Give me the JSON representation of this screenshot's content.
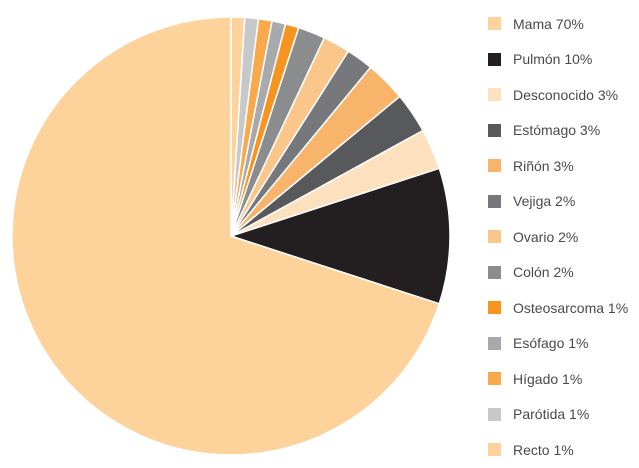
{
  "chart_data": {
    "type": "pie",
    "title": "",
    "slices": [
      {
        "label": "Mama",
        "value": 70,
        "color": "#FDD39B",
        "legend": "Mama 70%"
      },
      {
        "label": "Pulmón",
        "value": 10,
        "color": "#231F20",
        "legend": "Pulmón 10%"
      },
      {
        "label": "Desconocido",
        "value": 3,
        "color": "#FDE0BE",
        "legend": "Desconocido 3%"
      },
      {
        "label": "Estómago",
        "value": 3,
        "color": "#58595B",
        "legend": "Estómago 3%"
      },
      {
        "label": "Riñón",
        "value": 3,
        "color": "#F9B46B",
        "legend": "Riñón 3%"
      },
      {
        "label": "Vejiga",
        "value": 2,
        "color": "#77787B",
        "legend": "Vejiga 2%"
      },
      {
        "label": "Ovario",
        "value": 2,
        "color": "#FBC68A",
        "legend": "Ovario 2%"
      },
      {
        "label": "Colón",
        "value": 2,
        "color": "#8B8C8E",
        "legend": "Colón 2%"
      },
      {
        "label": "Osteosarcoma",
        "value": 1,
        "color": "#F7941D",
        "legend": "Osteosarcoma 1%"
      },
      {
        "label": "Esófago",
        "value": 1,
        "color": "#A7A9AC",
        "legend": "Esófago 1%"
      },
      {
        "label": "Hígado",
        "value": 1,
        "color": "#F8A94B",
        "legend": "Hígado 1%"
      },
      {
        "label": "Parótida",
        "value": 1,
        "color": "#C7C8CA",
        "legend": "Parótida 1%"
      },
      {
        "label": "Recto",
        "value": 1,
        "color": "#FDD39B",
        "legend": "Recto 1%"
      }
    ],
    "start_angle": "12 o'clock",
    "direction": "counterclockwise",
    "legend_position": "right",
    "slice_border_color": "#ffffff"
  }
}
